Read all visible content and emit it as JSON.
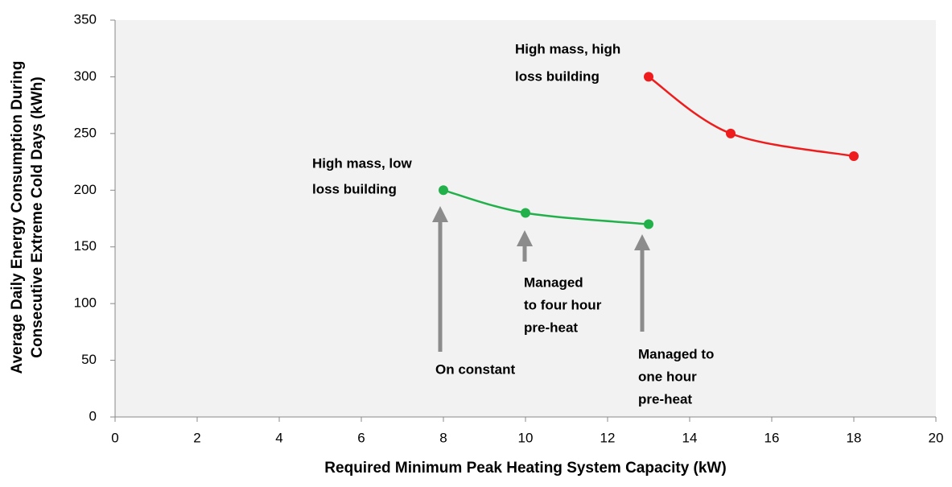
{
  "chart_data": {
    "type": "line",
    "xlabel": "Required Minimum Peak Heating System Capacity (kW)",
    "ylabel": [
      "Average Daily Energy Consumption During",
      "Consecutive Extreme Cold Days (kWh)"
    ],
    "xlim": [
      0,
      20
    ],
    "xticks": [
      0,
      2,
      4,
      6,
      8,
      10,
      12,
      14,
      16,
      18,
      20
    ],
    "ylim": [
      0,
      350
    ],
    "yticks": [
      0,
      50,
      100,
      150,
      200,
      250,
      300,
      350
    ],
    "series": [
      {
        "color": "#22b04b",
        "x": [
          8,
          10,
          13
        ],
        "values": [
          200,
          180,
          170
        ]
      },
      {
        "color": "#ee1c1c",
        "x": [
          13,
          15,
          18
        ],
        "values": [
          300,
          250,
          230
        ]
      }
    ],
    "annotations": [
      {
        "lines": [
          "High mass, high",
          "loss building"
        ]
      },
      {
        "lines": [
          "High mass, low",
          "loss building"
        ]
      },
      {
        "lines": [
          "On constant"
        ]
      },
      {
        "lines": [
          "Managed",
          "to four hour",
          "pre-heat"
        ]
      },
      {
        "lines": [
          "Managed to",
          "one hour",
          "pre-heat"
        ]
      }
    ]
  }
}
